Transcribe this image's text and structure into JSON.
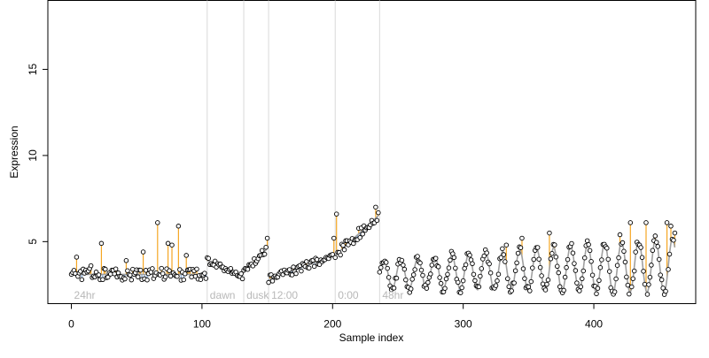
{
  "chart_data": {
    "type": "scatter",
    "title": "",
    "xlabel": "Sample index",
    "ylabel": "Expression",
    "xlim": [
      -18,
      478
    ],
    "ylim": [
      1.4,
      19.0
    ],
    "x_ticks": [
      0,
      100,
      200,
      300,
      400
    ],
    "y_ticks": [
      5,
      10,
      15
    ],
    "grid": false,
    "legend": "none",
    "colors": {
      "above_fit": "#f5a623",
      "below_fit": "#7ea6d8",
      "fit_line": "#a0a0a0",
      "point_fill": "#ffffff",
      "point_stroke": "#000000",
      "phase_line": "#d9d9d9",
      "phase_label": "#b8b8b8"
    },
    "phase_markers": [
      {
        "x": 0,
        "label": "24hr",
        "line": false
      },
      {
        "x": 104,
        "label": "dawn",
        "line": true
      },
      {
        "x": 132,
        "label": "dusk",
        "line": true
      },
      {
        "x": 151,
        "label": "12:00",
        "line": true
      },
      {
        "x": 202,
        "label": "0:00",
        "line": true
      },
      {
        "x": 236,
        "label": "48hr",
        "line": true
      }
    ],
    "series": [
      {
        "name": "",
        "segments": [
          {
            "x_start": 0,
            "x_end": 103,
            "pattern": "linear",
            "fit_start": 3.1,
            "fit_end": 3.1,
            "noise": 0.35,
            "bumps": [
              [
                4,
                4.1
              ],
              [
                15,
                3.6
              ],
              [
                23,
                4.9
              ],
              [
                42,
                3.9
              ],
              [
                55,
                4.4
              ],
              [
                66,
                6.1
              ],
              [
                74,
                4.9
              ],
              [
                77,
                4.8
              ],
              [
                82,
                5.9
              ],
              [
                88,
                4.2
              ]
            ]
          },
          {
            "x_start": 104,
            "x_end": 131,
            "pattern": "linear",
            "fit_start": 3.9,
            "fit_end": 3.0,
            "noise": 0.18,
            "bumps": []
          },
          {
            "x_start": 132,
            "x_end": 150,
            "pattern": "linear",
            "fit_start": 3.2,
            "fit_end": 4.6,
            "noise": 0.2,
            "bumps": [
              [
                150,
                5.2
              ]
            ]
          },
          {
            "x_start": 151,
            "x_end": 201,
            "pattern": "linear",
            "fit_start": 2.8,
            "fit_end": 4.2,
            "noise": 0.25,
            "bumps": [
              [
                201,
                5.2
              ]
            ]
          },
          {
            "x_start": 202,
            "x_end": 235,
            "pattern": "linear",
            "fit_start": 4.2,
            "fit_end": 6.5,
            "noise": 0.35,
            "bumps": [
              [
                203,
                6.6
              ],
              [
                233,
                7.0
              ]
            ]
          },
          {
            "x_start": 236,
            "x_end": 462,
            "pattern": "wave",
            "base_start": 3.1,
            "base_end": 3.6,
            "amp_start": 0.8,
            "amp_end": 1.6,
            "period": 13,
            "noise": 0.25,
            "bumps": [
              [
                333,
                4.8
              ],
              [
                345,
                5.2
              ],
              [
                366,
                5.5
              ],
              [
                420,
                5.4
              ],
              [
                428,
                6.1
              ],
              [
                440,
                6.1
              ],
              [
                456,
                6.1
              ],
              [
                459,
                5.9
              ],
              [
                462,
                5.5
              ]
            ]
          }
        ]
      }
    ]
  }
}
